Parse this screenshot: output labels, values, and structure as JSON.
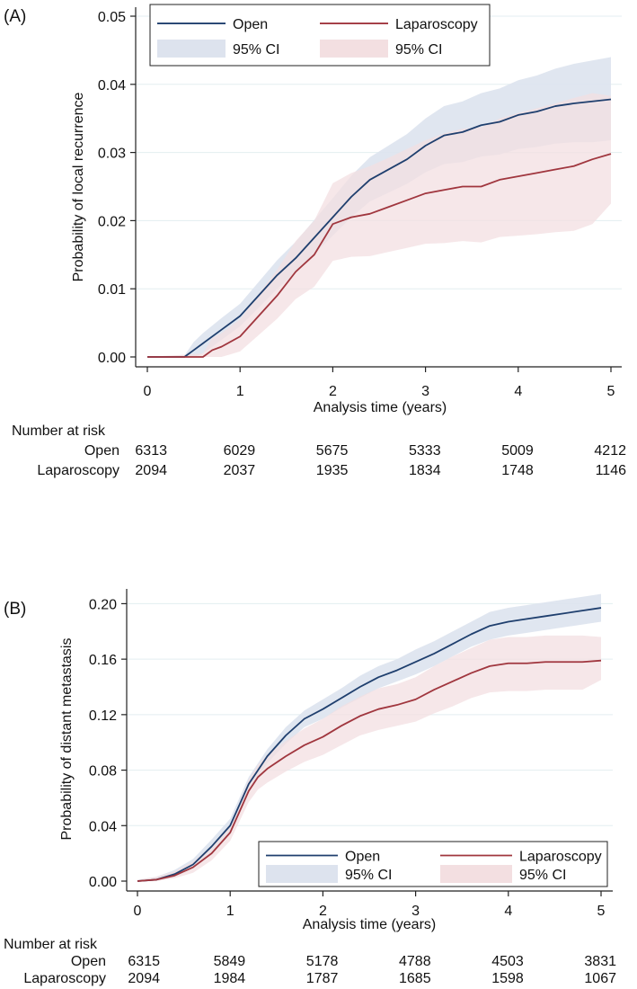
{
  "chart_data": [
    {
      "type": "line",
      "panel_label": "(A)",
      "xlabel": "Analysis time (years)",
      "ylabel": "Probability of local recurrence",
      "xlim": [
        0,
        5
      ],
      "ylim": [
        0,
        0.05
      ],
      "xticks": [
        "0",
        "1",
        "2",
        "3",
        "4",
        "5"
      ],
      "yticks": [
        "0.00",
        "0.01",
        "0.02",
        "0.03",
        "0.04",
        "0.05"
      ],
      "legend": {
        "position": "top",
        "entries": [
          "Open",
          "Laparoscopy",
          "95% CI",
          "95% CI"
        ]
      },
      "colors": {
        "open": "#1f3f6e",
        "open_ci": "#dde3ee",
        "lap": "#a0363e",
        "lap_ci": "#f3dfe1"
      },
      "series": [
        {
          "name": "Open",
          "x": [
            0,
            0.4,
            0.5,
            0.6,
            0.8,
            1.0,
            1.2,
            1.4,
            1.6,
            1.8,
            2.0,
            2.2,
            2.4,
            2.6,
            2.8,
            3.0,
            3.2,
            3.4,
            3.6,
            3.8,
            4.0,
            4.2,
            4.4,
            4.6,
            4.8,
            5.0
          ],
          "y": [
            0,
            0,
            0.001,
            0.002,
            0.004,
            0.006,
            0.009,
            0.012,
            0.0145,
            0.0175,
            0.0205,
            0.0235,
            0.026,
            0.0275,
            0.029,
            0.031,
            0.0325,
            0.033,
            0.034,
            0.0345,
            0.0355,
            0.036,
            0.0368,
            0.0372,
            0.0375,
            0.0378
          ],
          "ci_lower": [
            0,
            0,
            0,
            0.0005,
            0.0025,
            0.0045,
            0.0072,
            0.01,
            0.0123,
            0.0151,
            0.0178,
            0.0205,
            0.0228,
            0.0241,
            0.0254,
            0.0271,
            0.0283,
            0.0286,
            0.0294,
            0.0297,
            0.0305,
            0.0308,
            0.0313,
            0.0315,
            0.0315,
            0.0318
          ],
          "ci_upper": [
            0,
            0.0002,
            0.0022,
            0.0035,
            0.0057,
            0.0078,
            0.011,
            0.0142,
            0.0169,
            0.0201,
            0.0233,
            0.0266,
            0.0293,
            0.031,
            0.0327,
            0.035,
            0.0368,
            0.0375,
            0.0387,
            0.0394,
            0.0406,
            0.0413,
            0.0423,
            0.043,
            0.0435,
            0.044
          ]
        },
        {
          "name": "Laparoscopy",
          "x": [
            0,
            0.6,
            0.7,
            0.8,
            1.0,
            1.2,
            1.4,
            1.6,
            1.8,
            2.0,
            2.2,
            2.4,
            2.6,
            2.8,
            3.0,
            3.2,
            3.4,
            3.6,
            3.8,
            4.0,
            4.2,
            4.4,
            4.6,
            4.8,
            5.0
          ],
          "y": [
            0,
            0,
            0.001,
            0.0015,
            0.003,
            0.006,
            0.009,
            0.0125,
            0.015,
            0.0195,
            0.0205,
            0.021,
            0.022,
            0.023,
            0.024,
            0.0245,
            0.025,
            0.025,
            0.026,
            0.0265,
            0.027,
            0.0275,
            0.028,
            0.029,
            0.0298
          ],
          "ci_lower": [
            0,
            0,
            0,
            0,
            0.0008,
            0.0032,
            0.0056,
            0.0085,
            0.0103,
            0.0141,
            0.0147,
            0.0148,
            0.0154,
            0.016,
            0.0166,
            0.0167,
            0.017,
            0.0168,
            0.0176,
            0.0178,
            0.018,
            0.0183,
            0.0185,
            0.0195,
            0.0225
          ],
          "ci_upper": [
            0,
            0.0005,
            0.0028,
            0.0035,
            0.0055,
            0.0092,
            0.0128,
            0.017,
            0.02,
            0.0255,
            0.027,
            0.028,
            0.0292,
            0.0305,
            0.0318,
            0.0328,
            0.0335,
            0.0337,
            0.035,
            0.0358,
            0.0365,
            0.0372,
            0.038,
            0.0387,
            0.0383
          ]
        }
      ],
      "risk_table": {
        "header": "Number at risk",
        "rows": [
          {
            "label": "Open",
            "values": [
              "6313",
              "6029",
              "5675",
              "5333",
              "5009",
              "4212"
            ]
          },
          {
            "label": "Laparoscopy",
            "values": [
              "2094",
              "2037",
              "1935",
              "1834",
              "1748",
              "1146"
            ]
          }
        ]
      }
    },
    {
      "type": "line",
      "panel_label": "(B)",
      "xlabel": "Analysis time (years)",
      "ylabel": "Probability of distant metastasis",
      "xlim": [
        0,
        5
      ],
      "ylim": [
        0,
        0.21
      ],
      "xticks": [
        "0",
        "1",
        "2",
        "3",
        "4",
        "5"
      ],
      "yticks": [
        "0.00",
        "0.04",
        "0.08",
        "0.12",
        "0.16",
        "0.20"
      ],
      "ytick_values": [
        0,
        0.04,
        0.08,
        0.12,
        0.16,
        0.2
      ],
      "legend": {
        "position": "bottom-right",
        "entries": [
          "Open",
          "Laparoscopy",
          "95% CI",
          "95% CI"
        ]
      },
      "colors": {
        "open": "#1f3f6e",
        "open_ci": "#dde3ee",
        "lap": "#a0363e",
        "lap_ci": "#f3dfe1"
      },
      "series": [
        {
          "name": "Open",
          "x": [
            0,
            0.2,
            0.4,
            0.6,
            0.8,
            1.0,
            1.1,
            1.2,
            1.3,
            1.4,
            1.6,
            1.8,
            2.0,
            2.2,
            2.4,
            2.6,
            2.8,
            3.0,
            3.2,
            3.4,
            3.6,
            3.8,
            4.0,
            4.2,
            4.4,
            4.6,
            4.8,
            5.0
          ],
          "y": [
            0,
            0.001,
            0.005,
            0.012,
            0.025,
            0.04,
            0.055,
            0.07,
            0.08,
            0.09,
            0.105,
            0.117,
            0.124,
            0.132,
            0.14,
            0.147,
            0.152,
            0.158,
            0.164,
            0.171,
            0.178,
            0.184,
            0.187,
            0.189,
            0.191,
            0.193,
            0.195,
            0.197
          ],
          "ci_lower": [
            0,
            0,
            0.003,
            0.009,
            0.021,
            0.036,
            0.05,
            0.065,
            0.075,
            0.085,
            0.099,
            0.111,
            0.117,
            0.125,
            0.132,
            0.139,
            0.144,
            0.149,
            0.155,
            0.162,
            0.169,
            0.174,
            0.177,
            0.179,
            0.181,
            0.183,
            0.185,
            0.187
          ],
          "ci_upper": [
            0.001,
            0.003,
            0.008,
            0.016,
            0.03,
            0.045,
            0.06,
            0.075,
            0.085,
            0.095,
            0.111,
            0.123,
            0.131,
            0.139,
            0.148,
            0.155,
            0.16,
            0.167,
            0.173,
            0.18,
            0.187,
            0.194,
            0.197,
            0.199,
            0.201,
            0.203,
            0.205,
            0.207
          ]
        },
        {
          "name": "Laparoscopy",
          "x": [
            0,
            0.2,
            0.4,
            0.6,
            0.8,
            1.0,
            1.1,
            1.2,
            1.3,
            1.4,
            1.6,
            1.8,
            2.0,
            2.2,
            2.4,
            2.6,
            2.8,
            3.0,
            3.2,
            3.4,
            3.6,
            3.8,
            4.0,
            4.2,
            4.4,
            4.6,
            4.8,
            5.0
          ],
          "y": [
            0,
            0.001,
            0.004,
            0.01,
            0.02,
            0.035,
            0.05,
            0.065,
            0.075,
            0.081,
            0.09,
            0.098,
            0.104,
            0.112,
            0.119,
            0.124,
            0.127,
            0.131,
            0.138,
            0.144,
            0.15,
            0.155,
            0.157,
            0.157,
            0.158,
            0.158,
            0.158,
            0.159
          ],
          "ci_lower": [
            0,
            0,
            0.002,
            0.006,
            0.015,
            0.029,
            0.043,
            0.057,
            0.066,
            0.071,
            0.079,
            0.086,
            0.091,
            0.098,
            0.105,
            0.109,
            0.112,
            0.115,
            0.121,
            0.126,
            0.132,
            0.136,
            0.137,
            0.137,
            0.138,
            0.138,
            0.138,
            0.145
          ],
          "ci_upper": [
            0.001,
            0.003,
            0.007,
            0.014,
            0.025,
            0.041,
            0.057,
            0.073,
            0.084,
            0.091,
            0.101,
            0.11,
            0.117,
            0.126,
            0.133,
            0.139,
            0.142,
            0.147,
            0.155,
            0.162,
            0.168,
            0.174,
            0.176,
            0.176,
            0.177,
            0.177,
            0.177,
            0.176
          ]
        }
      ],
      "risk_table": {
        "header": "Number at risk",
        "rows": [
          {
            "label": "Open",
            "values": [
              "6315",
              "5849",
              "5178",
              "4788",
              "4503",
              "3831"
            ]
          },
          {
            "label": "Laparoscopy",
            "values": [
              "2094",
              "1984",
              "1787",
              "1685",
              "1598",
              "1067"
            ]
          }
        ]
      }
    }
  ]
}
